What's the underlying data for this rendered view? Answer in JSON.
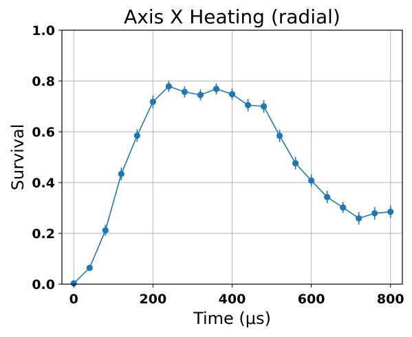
{
  "chart_data": {
    "type": "line",
    "title": "Axis X Heating (radial)",
    "xlabel": "Time (μs)",
    "ylabel": "Survival",
    "xlim": [
      -30,
      830
    ],
    "ylim": [
      0,
      1.0
    ],
    "x_ticks": [
      0,
      200,
      400,
      600,
      800
    ],
    "x_tick_labels": [
      "0",
      "200",
      "400",
      "600",
      "800"
    ],
    "y_ticks": [
      0.0,
      0.2,
      0.4,
      0.6,
      0.8,
      1.0
    ],
    "y_tick_labels": [
      "0.0",
      "0.2",
      "0.4",
      "0.6",
      "0.8",
      "1.0"
    ],
    "grid": true,
    "color": "#1f77b4",
    "series": [
      {
        "x": [
          0,
          40,
          80,
          120,
          160,
          200,
          240,
          280,
          320,
          360,
          400,
          440,
          480,
          520,
          560,
          600,
          640,
          680,
          720,
          760,
          800
        ],
        "values": [
          0.003,
          0.064,
          0.212,
          0.434,
          0.585,
          0.718,
          0.779,
          0.757,
          0.745,
          0.769,
          0.748,
          0.705,
          0.7,
          0.584,
          0.476,
          0.408,
          0.343,
          0.302,
          0.259,
          0.279,
          0.285
        ],
        "errors": [
          0.005,
          0.012,
          0.022,
          0.025,
          0.025,
          0.025,
          0.022,
          0.022,
          0.022,
          0.022,
          0.022,
          0.025,
          0.025,
          0.025,
          0.025,
          0.025,
          0.025,
          0.022,
          0.025,
          0.025,
          0.025
        ]
      }
    ]
  }
}
